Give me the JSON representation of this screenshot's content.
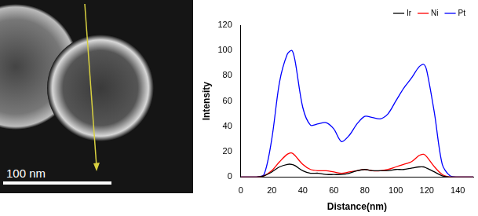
{
  "micrograph": {
    "scale_bar_label": "100 nm"
  },
  "chart_data": {
    "type": "line",
    "x_label": "Distance(nm)",
    "y_label": "Intensity",
    "x": [
      0,
      5,
      10,
      15,
      20,
      25,
      30,
      33,
      35,
      40,
      45,
      50,
      55,
      60,
      65,
      70,
      75,
      80,
      85,
      90,
      95,
      100,
      105,
      110,
      115,
      118,
      120,
      125,
      130,
      135,
      140,
      145,
      150
    ],
    "series": [
      {
        "name": "Ir",
        "color": "#000000",
        "values": [
          0,
          0,
          0,
          1,
          4,
          8,
          10,
          10,
          9,
          5,
          3,
          3,
          2,
          2,
          2,
          3,
          5,
          6,
          5,
          5,
          5,
          6,
          6,
          7,
          8,
          8,
          7,
          4,
          1,
          0,
          0,
          0,
          0
        ]
      },
      {
        "name": "Ni",
        "color": "#ff0000",
        "values": [
          0,
          0,
          0,
          1,
          5,
          12,
          18,
          19,
          17,
          10,
          6,
          5,
          5,
          4,
          3,
          4,
          5,
          6,
          5,
          5,
          6,
          8,
          10,
          12,
          17,
          18,
          16,
          8,
          2,
          0,
          0,
          0,
          0
        ]
      },
      {
        "name": "Pt",
        "color": "#0000ff",
        "values": [
          0,
          0,
          0,
          2,
          30,
          75,
          97,
          100,
          92,
          55,
          41,
          42,
          43,
          38,
          28,
          33,
          42,
          48,
          47,
          46,
          50,
          60,
          70,
          78,
          87,
          89,
          84,
          50,
          10,
          1,
          0,
          0,
          0
        ]
      }
    ],
    "xlim": [
      0,
      150
    ],
    "xticks": [
      0,
      20,
      40,
      60,
      80,
      100,
      120,
      140
    ],
    "ylim": [
      0,
      120
    ],
    "yticks": [
      0,
      20,
      40,
      60,
      80,
      100,
      120
    ],
    "grid": false,
    "legend": "upper right"
  }
}
